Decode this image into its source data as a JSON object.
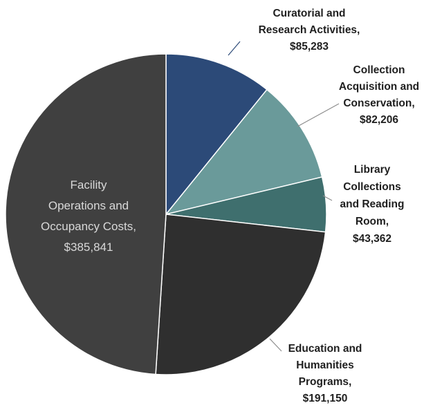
{
  "chart_data": {
    "type": "pie",
    "title": "",
    "slices": [
      {
        "label_lines": [
          "Curatorial and",
          "Research Activities,",
          "$85,283"
        ],
        "value": 85283,
        "color": "#2c4a78"
      },
      {
        "label_lines": [
          "Collection",
          "Acquisition and",
          "Conservation,",
          "$82,206"
        ],
        "value": 82206,
        "color": "#6a9a9a"
      },
      {
        "label_lines": [
          "Library",
          "Collections",
          "and Reading",
          "Room,",
          "$43,362"
        ],
        "value": 43362,
        "color": "#3f6f6e"
      },
      {
        "label_lines": [
          "Education and",
          "Humanities",
          "Programs,",
          "$191,150"
        ],
        "value": 191150,
        "color": "#2f2f2f"
      },
      {
        "label_lines": [
          "Facility",
          "Operations and",
          "Occupancy Costs,",
          "$385,841"
        ],
        "value": 385841,
        "color": "#404040"
      }
    ]
  }
}
